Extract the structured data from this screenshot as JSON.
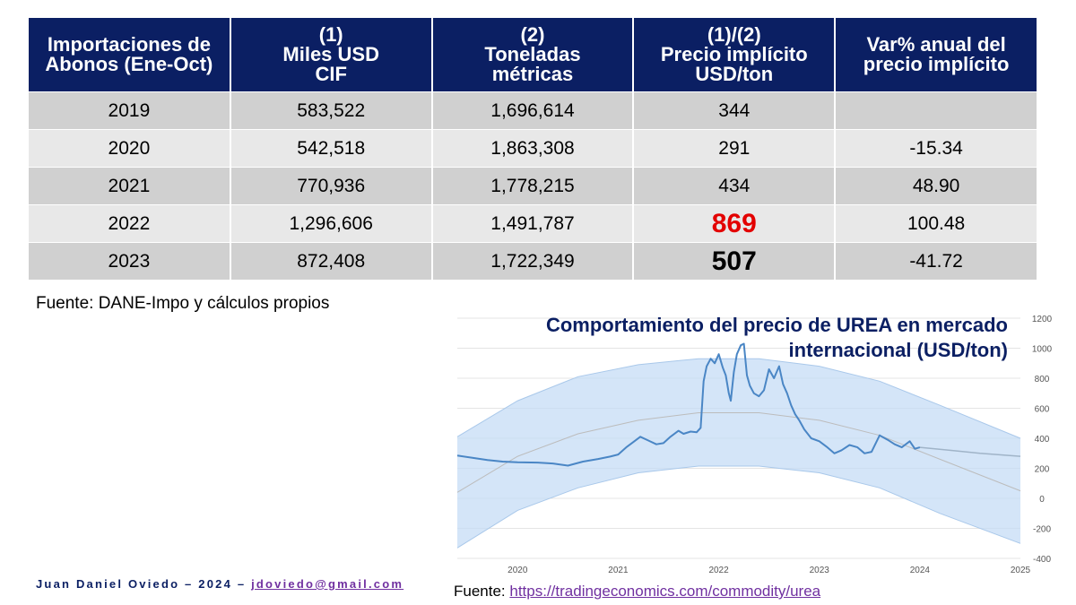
{
  "table": {
    "headers": [
      [
        "Importaciones de",
        "Abonos (Ene-Oct)"
      ],
      [
        "(1)",
        "Miles USD",
        "CIF"
      ],
      [
        "(2)",
        "Toneladas",
        "métricas"
      ],
      [
        "(1)/(2)",
        "Precio implícito",
        "USD/ton"
      ],
      [
        "Var% anual del",
        "precio implícito"
      ]
    ],
    "rows": [
      {
        "year": "2019",
        "usd": "583,522",
        "tons": "1,696,614",
        "price": "344",
        "var": ""
      },
      {
        "year": "2020",
        "usd": "542,518",
        "tons": "1,863,308",
        "price": "291",
        "var": "-15.34"
      },
      {
        "year": "2021",
        "usd": "770,936",
        "tons": "1,778,215",
        "price": "434",
        "var": "48.90"
      },
      {
        "year": "2022",
        "usd": "1,296,606",
        "tons": "1,491,787",
        "price": "869",
        "var": "100.48"
      },
      {
        "year": "2023",
        "usd": "872,408",
        "tons": "1,722,349",
        "price": "507",
        "var": "-41.72"
      }
    ],
    "highlight_colors": {
      "2022": "#e30000",
      "2023": "#000000"
    }
  },
  "source_top": "Fuente: DANE-Impo y cálculos propios",
  "author": {
    "text": "Juan Daniel Oviedo – 2024 – ",
    "email": "jdoviedo@gmail.com"
  },
  "source_bottom": {
    "label": "Fuente: ",
    "link": "https://tradingeconomics.com/commodity/urea"
  },
  "colors": {
    "header_bg": "#0b1f63",
    "row_dark": "#d0d0d0",
    "row_light": "#e8e8e8",
    "line": "#4a86c5",
    "band": "#c5dcf5"
  },
  "chart_data": {
    "type": "line",
    "title_lines": [
      "Comportamiento del precio de UREA en mercado",
      "internacional (USD/ton)"
    ],
    "x_ticks": [
      "2020",
      "2021",
      "2022",
      "2023",
      "2024",
      "2025"
    ],
    "y_ticks": [
      1200,
      1000,
      800,
      600,
      400,
      200,
      0,
      -200,
      -400
    ],
    "xlim": [
      2019.4,
      2025.0
    ],
    "ylim": [
      -400,
      1200
    ],
    "grid": true,
    "series": [
      {
        "x": [
          2019.4,
          2019.55,
          2019.7,
          2019.85,
          2020.0,
          2020.2,
          2020.35,
          2020.5,
          2020.65,
          2020.8,
          2020.92,
          2021.0,
          2021.08,
          2021.15,
          2021.22,
          2021.3,
          2021.38,
          2021.45,
          2021.52,
          2021.6,
          2021.65,
          2021.72,
          2021.78,
          2021.82,
          2021.85,
          2021.88,
          2021.92,
          2021.96,
          2022.0,
          2022.04,
          2022.07,
          2022.1,
          2022.12,
          2022.15,
          2022.18,
          2022.22,
          2022.25,
          2022.28,
          2022.31,
          2022.35,
          2022.4,
          2022.45,
          2022.5,
          2022.55,
          2022.6,
          2022.64,
          2022.68,
          2022.72,
          2022.76,
          2022.8,
          2022.85,
          2022.92,
          2023.0,
          2023.08,
          2023.15,
          2023.22,
          2023.3,
          2023.38,
          2023.45,
          2023.52,
          2023.6,
          2023.68,
          2023.75,
          2023.82,
          2023.9,
          2023.95,
          2024.0
        ],
        "y": [
          285,
          270,
          255,
          245,
          240,
          238,
          232,
          218,
          245,
          262,
          278,
          292,
          340,
          375,
          410,
          385,
          360,
          368,
          410,
          450,
          430,
          445,
          440,
          470,
          780,
          880,
          930,
          900,
          960,
          870,
          820,
          700,
          650,
          840,
          960,
          1020,
          1030,
          820,
          750,
          700,
          680,
          720,
          860,
          800,
          880,
          760,
          700,
          620,
          560,
          520,
          460,
          400,
          380,
          340,
          300,
          320,
          355,
          340,
          300,
          310,
          420,
          390,
          360,
          340,
          380,
          330,
          340
        ]
      },
      {
        "name": "forecast",
        "x": [
          2024.0,
          2024.3,
          2024.6,
          2025.0
        ],
        "y": [
          340,
          320,
          300,
          280
        ]
      }
    ],
    "band": {
      "x": [
        2019.4,
        2020.0,
        2020.6,
        2021.2,
        2021.8,
        2022.4,
        2023.0,
        2023.6,
        2024.2,
        2025.0
      ],
      "upper": [
        410,
        650,
        810,
        890,
        930,
        930,
        880,
        780,
        620,
        400
      ],
      "lower": [
        -330,
        -80,
        70,
        170,
        215,
        215,
        170,
        70,
        -100,
        -300
      ],
      "trend": [
        40,
        280,
        430,
        520,
        570,
        570,
        520,
        420,
        260,
        50
      ]
    }
  }
}
